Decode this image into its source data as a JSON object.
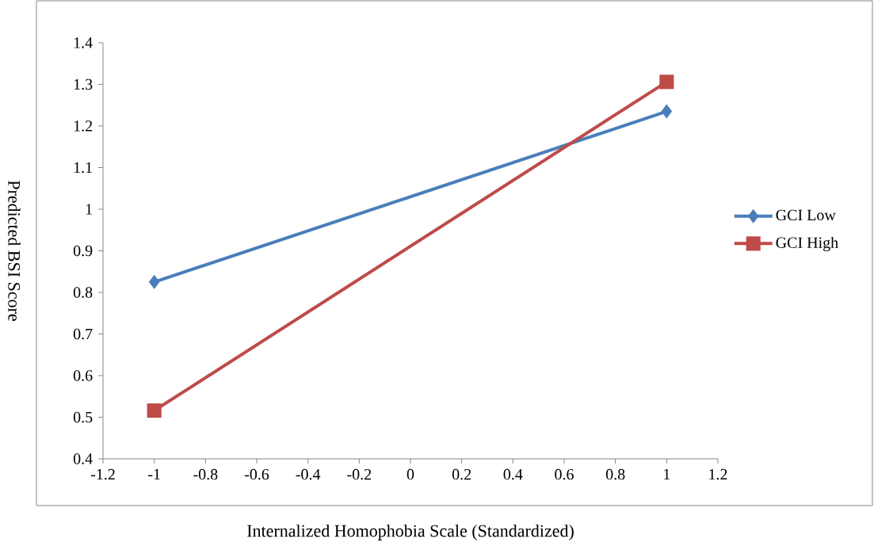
{
  "chart_data": {
    "type": "line",
    "xlabel": "Internalized Homophobia Scale (Standardized)",
    "ylabel": "Predicted BSI Score",
    "x": [
      -1,
      1
    ],
    "series": [
      {
        "name": "GCI Low",
        "color": "#4a7ebb",
        "values": [
          0.825,
          1.235
        ],
        "marker": "diamond"
      },
      {
        "name": "GCI High",
        "color": "#be4b48",
        "values": [
          0.516,
          1.306
        ],
        "marker": "square"
      }
    ],
    "xlim": [
      -1.2,
      1.2
    ],
    "xticks": [
      -1.2,
      -1,
      -0.8,
      -0.6,
      -0.4,
      -0.2,
      0,
      0.2,
      0.4,
      0.6,
      0.8,
      1,
      1.2
    ],
    "ylim": [
      0.4,
      1.4
    ],
    "yticks": [
      0.4,
      0.5,
      0.6,
      0.7,
      0.8,
      0.9,
      1,
      1.1,
      1.2,
      1.3,
      1.4
    ],
    "grid": false,
    "legend": "right",
    "line_style": "solid"
  }
}
